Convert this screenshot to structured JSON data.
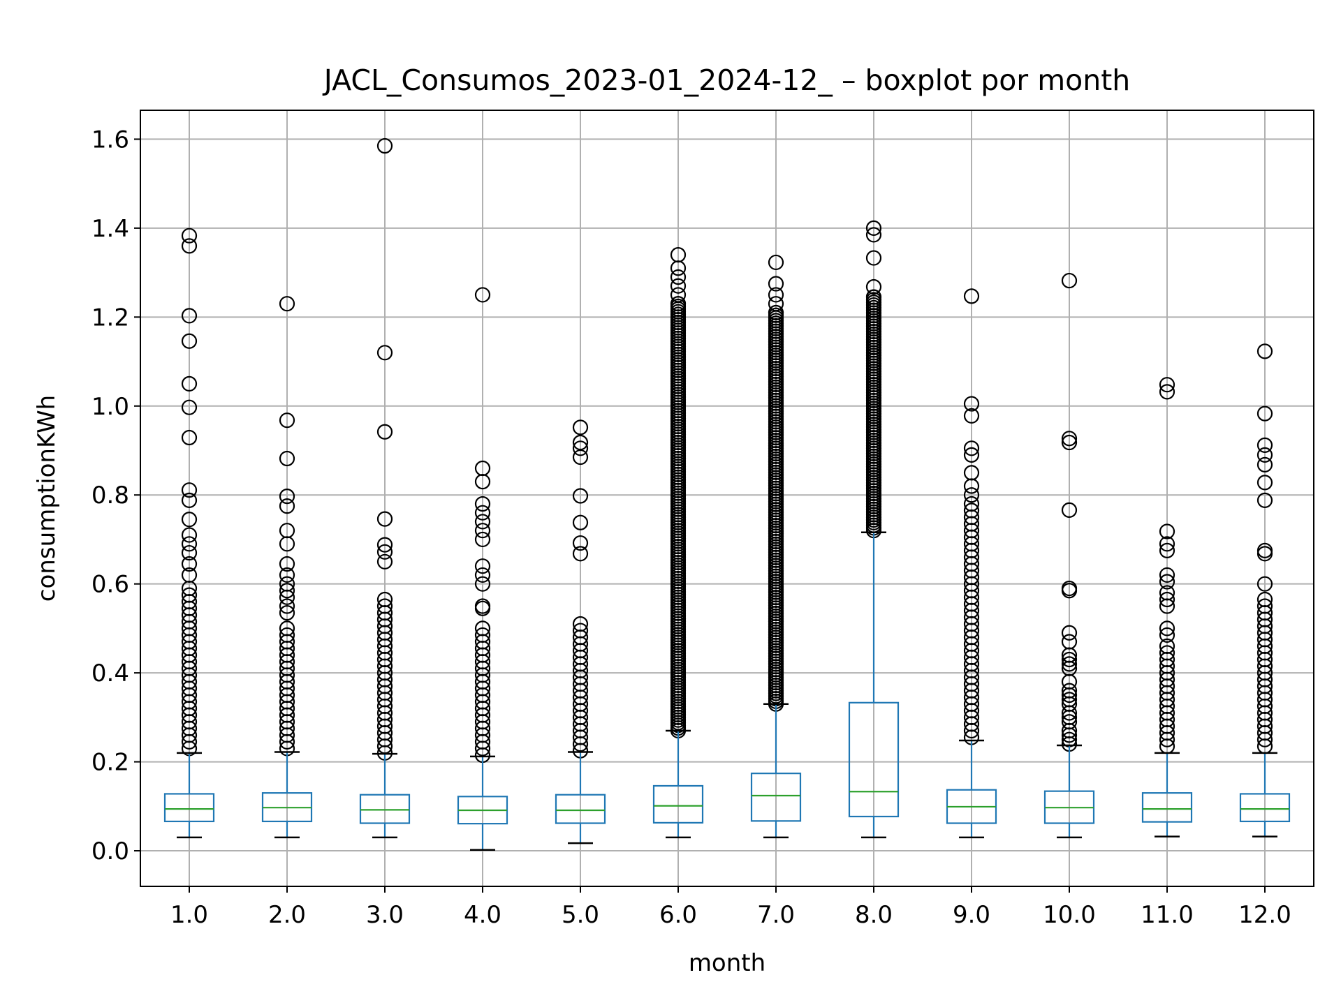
{
  "chart_data": {
    "type": "boxplot",
    "title": "JACL_Consumos_2023-01_2024-12_ – boxplot por month",
    "xlabel": "month",
    "ylabel": "consumptionKWh",
    "ylim": [
      -0.08,
      1.665
    ],
    "yticks": [
      "0.0",
      "0.2",
      "0.4",
      "0.6",
      "0.8",
      "1.0",
      "1.2",
      "1.4",
      "1.6"
    ],
    "ytick_values": [
      0.0,
      0.2,
      0.4,
      0.6,
      0.8,
      1.0,
      1.2,
      1.4,
      1.6
    ],
    "grid": true,
    "legend": "none",
    "colors": {
      "box": "#1f77b4",
      "median": "#2ca02c",
      "flier": "#000000",
      "grid": "#b0b0b0"
    },
    "categories": [
      "1.0",
      "2.0",
      "3.0",
      "4.0",
      "5.0",
      "6.0",
      "7.0",
      "8.0",
      "9.0",
      "10.0",
      "11.0",
      "12.0"
    ],
    "boxes": [
      {
        "whisker_low": 0.03,
        "q1": 0.066,
        "median": 0.094,
        "q3": 0.128,
        "whisker_high": 0.22,
        "outliers": [
          1.383,
          1.36,
          1.203,
          1.146,
          1.05,
          0.997,
          0.929,
          0.811,
          0.788,
          0.745,
          0.71,
          0.69,
          0.67,
          0.645,
          0.62,
          0.59,
          0.575,
          0.56,
          0.545,
          0.53,
          0.515,
          0.5,
          0.485,
          0.47,
          0.455,
          0.44,
          0.425,
          0.41,
          0.395,
          0.38,
          0.365,
          0.35,
          0.335,
          0.32,
          0.305,
          0.29,
          0.275,
          0.26,
          0.245,
          0.23
        ]
      },
      {
        "whisker_low": 0.03,
        "q1": 0.066,
        "median": 0.097,
        "q3": 0.13,
        "whisker_high": 0.222,
        "outliers": [
          1.23,
          0.968,
          0.882,
          0.797,
          0.775,
          0.72,
          0.69,
          0.645,
          0.62,
          0.6,
          0.585,
          0.57,
          0.55,
          0.535,
          0.5,
          0.485,
          0.47,
          0.455,
          0.44,
          0.425,
          0.41,
          0.395,
          0.38,
          0.365,
          0.35,
          0.335,
          0.32,
          0.305,
          0.29,
          0.275,
          0.26,
          0.245,
          0.23
        ]
      },
      {
        "whisker_low": 0.03,
        "q1": 0.062,
        "median": 0.092,
        "q3": 0.126,
        "whisker_high": 0.218,
        "outliers": [
          1.585,
          1.12,
          0.942,
          0.746,
          0.688,
          0.672,
          0.65,
          0.565,
          0.55,
          0.535,
          0.52,
          0.505,
          0.49,
          0.475,
          0.46,
          0.445,
          0.43,
          0.415,
          0.4,
          0.385,
          0.37,
          0.355,
          0.34,
          0.325,
          0.31,
          0.295,
          0.28,
          0.265,
          0.25,
          0.235,
          0.22
        ]
      },
      {
        "whisker_low": 0.002,
        "q1": 0.061,
        "median": 0.091,
        "q3": 0.122,
        "whisker_high": 0.212,
        "outliers": [
          1.25,
          0.86,
          0.83,
          0.78,
          0.76,
          0.74,
          0.72,
          0.7,
          0.64,
          0.62,
          0.6,
          0.55,
          0.545,
          0.5,
          0.485,
          0.47,
          0.455,
          0.44,
          0.425,
          0.41,
          0.395,
          0.38,
          0.365,
          0.35,
          0.335,
          0.32,
          0.305,
          0.29,
          0.275,
          0.26,
          0.245,
          0.23,
          0.215
        ]
      },
      {
        "whisker_low": 0.017,
        "q1": 0.062,
        "median": 0.091,
        "q3": 0.126,
        "whisker_high": 0.222,
        "outliers": [
          0.952,
          0.918,
          0.905,
          0.885,
          0.798,
          0.738,
          0.692,
          0.668,
          0.51,
          0.495,
          0.48,
          0.465,
          0.45,
          0.435,
          0.42,
          0.405,
          0.39,
          0.375,
          0.36,
          0.345,
          0.33,
          0.315,
          0.3,
          0.285,
          0.27,
          0.255,
          0.24,
          0.225
        ]
      },
      {
        "whisker_low": 0.03,
        "q1": 0.063,
        "median": 0.101,
        "q3": 0.146,
        "whisker_high": 0.27,
        "outliers": [
          1.34,
          1.31,
          1.29,
          1.27,
          1.25,
          1.23
        ],
        "outlier_band": [
          0.27,
          1.23
        ]
      },
      {
        "whisker_low": 0.03,
        "q1": 0.067,
        "median": 0.124,
        "q3": 0.174,
        "whisker_high": 0.33,
        "outliers": [
          1.323,
          1.275,
          1.25,
          1.23,
          1.21
        ],
        "outlier_band": [
          0.33,
          1.21
        ]
      },
      {
        "whisker_low": 0.03,
        "q1": 0.077,
        "median": 0.133,
        "q3": 0.333,
        "whisker_high": 0.716,
        "outliers": [
          1.4,
          1.385,
          1.333,
          1.268,
          1.245
        ],
        "outlier_band": [
          0.72,
          1.245
        ]
      },
      {
        "whisker_low": 0.03,
        "q1": 0.062,
        "median": 0.099,
        "q3": 0.137,
        "whisker_high": 0.248,
        "outliers": [
          1.247,
          1.005,
          0.978,
          0.905,
          0.89,
          0.85,
          0.82,
          0.8,
          0.78,
          0.765,
          0.75,
          0.735,
          0.72,
          0.705,
          0.69,
          0.675,
          0.66,
          0.645,
          0.63,
          0.615,
          0.6,
          0.585,
          0.57,
          0.555,
          0.54,
          0.525,
          0.51,
          0.495,
          0.48,
          0.465,
          0.45,
          0.435,
          0.42,
          0.405,
          0.39,
          0.375,
          0.36,
          0.345,
          0.33,
          0.315,
          0.3,
          0.285,
          0.27,
          0.255
        ]
      },
      {
        "whisker_low": 0.03,
        "q1": 0.062,
        "median": 0.097,
        "q3": 0.134,
        "whisker_high": 0.237,
        "outliers": [
          1.282,
          0.927,
          0.918,
          0.766,
          0.59,
          0.585,
          0.49,
          0.47,
          0.44,
          0.43,
          0.42,
          0.41,
          0.38,
          0.36,
          0.35,
          0.34,
          0.33,
          0.31,
          0.3,
          0.29,
          0.27,
          0.26,
          0.25,
          0.24
        ]
      },
      {
        "whisker_low": 0.032,
        "q1": 0.065,
        "median": 0.094,
        "q3": 0.13,
        "whisker_high": 0.22,
        "outliers": [
          1.048,
          1.032,
          0.718,
          0.69,
          0.675,
          0.62,
          0.605,
          0.58,
          0.565,
          0.55,
          0.5,
          0.485,
          0.46,
          0.445,
          0.43,
          0.415,
          0.4,
          0.385,
          0.37,
          0.355,
          0.34,
          0.325,
          0.31,
          0.295,
          0.28,
          0.265,
          0.25,
          0.235
        ]
      },
      {
        "whisker_low": 0.032,
        "q1": 0.066,
        "median": 0.094,
        "q3": 0.128,
        "whisker_high": 0.22,
        "outliers": [
          1.123,
          0.983,
          0.912,
          0.89,
          0.868,
          0.828,
          0.788,
          0.675,
          0.668,
          0.6,
          0.565,
          0.55,
          0.535,
          0.52,
          0.505,
          0.49,
          0.475,
          0.46,
          0.445,
          0.43,
          0.415,
          0.4,
          0.385,
          0.37,
          0.355,
          0.34,
          0.325,
          0.31,
          0.295,
          0.28,
          0.265,
          0.25,
          0.235
        ]
      }
    ]
  }
}
